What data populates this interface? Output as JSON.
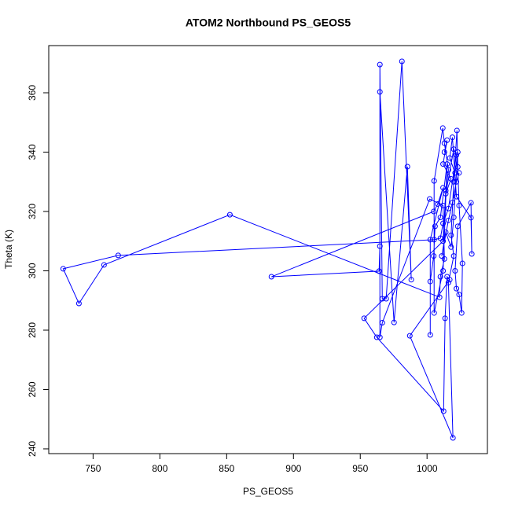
{
  "chart_data": {
    "type": "line",
    "title": "ATOM2 Northbound PS_GEOS5",
    "xlabel": "PS_GEOS5",
    "ylabel": "Theta (K)",
    "color": "#0000ff",
    "markers": true,
    "xlim": [
      716.8,
      1045.2
    ],
    "ylim": [
      238.4,
      375.9
    ],
    "xticks": [
      750,
      800,
      850,
      900,
      950,
      1000
    ],
    "yticks": [
      240,
      260,
      280,
      300,
      320,
      340,
      360
    ],
    "x": [
      1013,
      1015,
      1012,
      1018,
      1014,
      1020,
      1022,
      1016,
      1012,
      1010,
      1005.3,
      768.8,
      727.6,
      739.4,
      758.2,
      852.4,
      1009.4,
      1010,
      1013,
      1012,
      1002,
      966.5,
      964.7,
      964.7,
      966.5,
      969.4,
      981.2,
      988.2,
      985.3,
      975.3,
      964.7,
      964.7,
      964.1,
      883.5,
      1005,
      1008,
      1012,
      1002.4,
      1002.4,
      1002.4,
      1005,
      1006,
      1010,
      1015,
      1012,
      1005.3,
      1005.3,
      1011.8,
      1013,
      1016,
      1014,
      1012,
      952.9,
      962.4,
      1012.4,
      1013.5,
      1015,
      1017,
      987.1,
      1019.4,
      1016,
      1020,
      1018,
      1020,
      1022.4,
      1023,
      1024,
      1026.5,
      1025.9,
      1024,
      1022,
      1021,
      1023,
      1032.9,
      1033.5,
      1032.9,
      1022,
      1019,
      1017,
      1021,
      1023,
      1020,
      1018,
      1014,
      1011,
      1016,
      1019,
      1022,
      1024
    ],
    "y": [
      340,
      344,
      336,
      331,
      326,
      341,
      339,
      321,
      316,
      311,
      310.5,
      305.2,
      300.7,
      289.0,
      302.0,
      318.9,
      291.1,
      298,
      304,
      322,
      324.2,
      282.5,
      277.6,
      369.5,
      290.6,
      290.6,
      370.6,
      297.0,
      335.1,
      282.6,
      360.3,
      308.3,
      299.9,
      298.0,
      320,
      322.5,
      328,
      310.5,
      278.4,
      296.4,
      305,
      315,
      318,
      336,
      300,
      285.8,
      330.3,
      348.1,
      343,
      334,
      327,
      310,
      284.0,
      277.6,
      252.7,
      284.0,
      298,
      297,
      278.1,
      243.7,
      296,
      305,
      312,
      330,
      347.3,
      335,
      322,
      302.5,
      285.8,
      292,
      294,
      300,
      315,
      322.9,
      305.7,
      317.9,
      325,
      345,
      338,
      333,
      340,
      318,
      308,
      313,
      305,
      317,
      323,
      330,
      333
    ]
  }
}
